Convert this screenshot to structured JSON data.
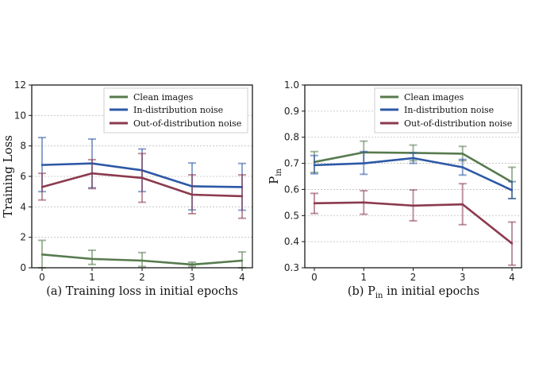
{
  "colors": {
    "clean": "#577a4e",
    "indist": "#2d58a6",
    "ood": "#8b3a4e",
    "grid": "#bdbdbd",
    "axis": "#1a1a1a"
  },
  "chart_data": [
    {
      "type": "line",
      "caption": "(a) Training loss in initial epochs",
      "xlabel": "",
      "ylabel": "Training Loss",
      "x": [
        0,
        1,
        2,
        3,
        4
      ],
      "xticks": [
        "0",
        "1",
        "2",
        "3",
        "4"
      ],
      "ylim": [
        0,
        12
      ],
      "yticks": [
        "0",
        "2",
        "4",
        "6",
        "8",
        "10",
        "12"
      ],
      "grid": "y",
      "legend_position": "top-right",
      "series": [
        {
          "name": "Clean images",
          "color_key": "clean",
          "values": [
            0.87,
            0.58,
            0.47,
            0.21,
            0.47
          ],
          "err_lo": [
            0.0,
            0.22,
            0.08,
            0.08,
            0.0
          ],
          "err_hi": [
            1.8,
            1.15,
            1.0,
            0.37,
            1.04
          ]
        },
        {
          "name": "In-distribution noise",
          "color_key": "indist",
          "values": [
            6.75,
            6.85,
            6.4,
            5.35,
            5.3
          ],
          "err_lo": [
            5.0,
            5.25,
            5.0,
            3.8,
            3.78
          ],
          "err_hi": [
            8.55,
            8.45,
            7.8,
            6.88,
            6.85
          ]
        },
        {
          "name": "Out-of-distribution noise",
          "color_key": "ood",
          "values": [
            5.3,
            6.2,
            5.9,
            4.8,
            4.7
          ],
          "err_lo": [
            4.45,
            5.2,
            4.3,
            3.55,
            3.25
          ],
          "err_hi": [
            6.2,
            7.1,
            7.5,
            6.1,
            6.1
          ]
        }
      ]
    },
    {
      "type": "line",
      "caption_main": "(b) P",
      "caption_sub": "in",
      "caption_tail": " in initial epochs",
      "xlabel": "",
      "ylabel_main": "P",
      "ylabel_sub": "in",
      "x": [
        0,
        1,
        2,
        3,
        4
      ],
      "xticks": [
        "0",
        "1",
        "2",
        "3",
        "4"
      ],
      "ylim": [
        0.3,
        1.0
      ],
      "yticks": [
        "0.3",
        "0.4",
        "0.5",
        "0.6",
        "0.7",
        "0.8",
        "0.9",
        "1.0"
      ],
      "grid": "y",
      "legend_position": "top-right",
      "series": [
        {
          "name": "Clean images",
          "color_key": "clean",
          "values": [
            0.705,
            0.742,
            0.74,
            0.737,
            0.628
          ],
          "err_lo": [
            0.665,
            0.7,
            0.71,
            0.71,
            0.565
          ],
          "err_hi": [
            0.745,
            0.785,
            0.77,
            0.765,
            0.685
          ]
        },
        {
          "name": "In-distribution noise",
          "color_key": "indist",
          "values": [
            0.693,
            0.7,
            0.72,
            0.685,
            0.597
          ],
          "err_lo": [
            0.66,
            0.658,
            0.7,
            0.655,
            0.565
          ],
          "err_hi": [
            0.73,
            0.745,
            0.74,
            0.715,
            0.63
          ]
        },
        {
          "name": "Out-of-distribution noise",
          "color_key": "ood",
          "values": [
            0.547,
            0.55,
            0.538,
            0.543,
            0.393
          ],
          "err_lo": [
            0.508,
            0.505,
            0.48,
            0.465,
            0.31
          ],
          "err_hi": [
            0.585,
            0.595,
            0.598,
            0.622,
            0.475
          ]
        }
      ]
    }
  ]
}
